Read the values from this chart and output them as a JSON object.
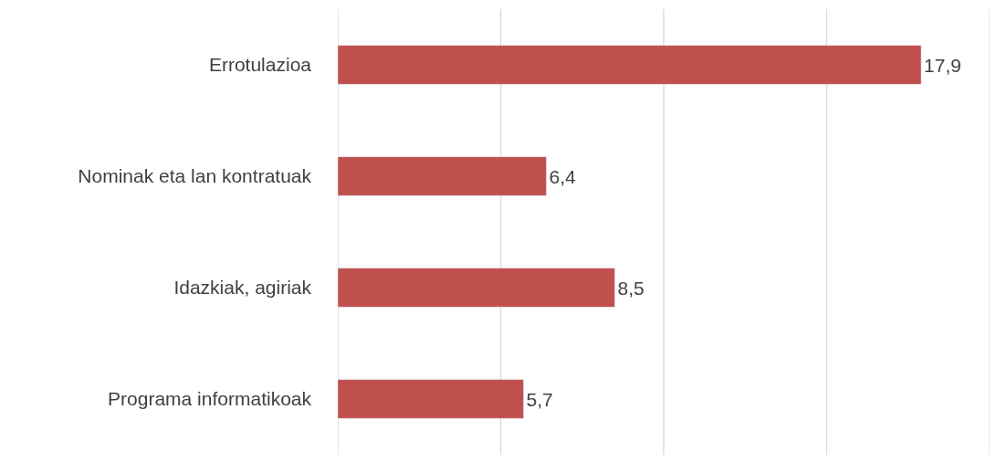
{
  "chart_data": {
    "type": "bar",
    "orientation": "horizontal",
    "categories": [
      "Errotulazioa",
      "Nominak eta lan kontratuak",
      "Idazkiak, agiriak",
      "Programa informatikoak"
    ],
    "values": [
      17.9,
      6.4,
      8.5,
      5.7
    ],
    "value_labels": [
      "17,9",
      "6,4",
      "8,5",
      "5,7"
    ],
    "color": "#c0504d",
    "xlim": [
      0,
      20
    ],
    "xticks": [
      {
        "value": 0,
        "label": null
      },
      {
        "value": 5,
        "label": null
      },
      {
        "value": 10,
        "label": null
      },
      {
        "value": 15,
        "label": null
      },
      {
        "value": 20,
        "label": null
      }
    ],
    "grid": "x",
    "tick_labels": "y"
  }
}
